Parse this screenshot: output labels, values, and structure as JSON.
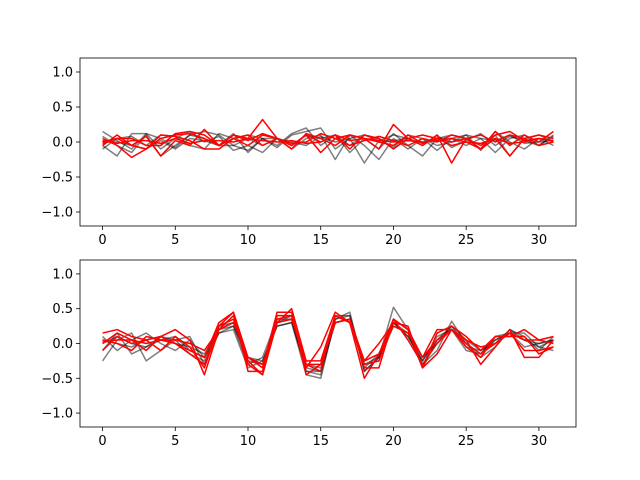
{
  "chart_data": [
    {
      "type": "line",
      "title": "",
      "xlabel": "",
      "ylabel": "",
      "xlim": [
        -1.55,
        32.55
      ],
      "ylim": [
        -1.2,
        1.2
      ],
      "xticks": [
        0,
        5,
        10,
        15,
        20,
        25,
        30
      ],
      "yticks": [
        -1.0,
        -0.5,
        0.0,
        0.5,
        1.0
      ],
      "ytick_labels": [
        "−1.0",
        "−0.5",
        "0.0",
        "0.5",
        "1.0"
      ],
      "grid": false,
      "colors": {
        "series_gray": "#000000",
        "series_red": "#ff0000",
        "gray_alpha": 0.5
      },
      "x": [
        0,
        1,
        2,
        3,
        4,
        5,
        6,
        7,
        8,
        9,
        10,
        11,
        12,
        13,
        14,
        15,
        16,
        17,
        18,
        19,
        20,
        21,
        22,
        23,
        24,
        25,
        26,
        27,
        28,
        29,
        30,
        31
      ],
      "series": [
        {
          "color": "gray",
          "values": [
            0.15,
            0.02,
            -0.1,
            0.12,
            0.05,
            -0.08,
            0.1,
            0.05,
            -0.05,
            0.12,
            -0.15,
            0.05,
            -0.08,
            0.1,
            0.15,
            0.2,
            -0.1,
            0.05,
            -0.3,
            0.02,
            0.1,
            0.05,
            -0.05,
            0.1,
            -0.08,
            0.02,
            0.12,
            -0.05,
            0.08,
            0.02,
            -0.05,
            0.1
          ]
        },
        {
          "color": "gray",
          "values": [
            -0.05,
            -0.2,
            0.12,
            0.12,
            -0.1,
            0.05,
            0.15,
            0.0,
            0.08,
            -0.12,
            -0.05,
            -0.15,
            0.05,
            -0.1,
            0.05,
            0.1,
            -0.25,
            0.1,
            -0.05,
            -0.25,
            0.05,
            -0.1,
            0.05,
            -0.12,
            0.05,
            0.1,
            -0.12,
            0.1,
            -0.2,
            0.05,
            0.1,
            0.0
          ]
        },
        {
          "color": "gray",
          "values": [
            0.08,
            -0.05,
            -0.15,
            0.1,
            -0.2,
            -0.05,
            0.1,
            0.15,
            0.1,
            -0.05,
            -0.12,
            0.05,
            0.05,
            -0.05,
            0.1,
            0.05,
            0.1,
            -0.15,
            0.05,
            -0.1,
            0.12,
            -0.05,
            -0.2,
            0.05,
            0.1,
            0.05,
            -0.1,
            0.15,
            0.0,
            -0.1,
            0.05,
            -0.05
          ]
        },
        {
          "color": "gray",
          "values": [
            -0.1,
            0.05,
            0.08,
            -0.05,
            0.1,
            0.08,
            -0.05,
            -0.1,
            0.12,
            0.05,
            0.1,
            0.05,
            -0.05,
            0.12,
            0.2,
            -0.05,
            0.1,
            -0.05,
            0.1,
            0.05,
            -0.08,
            0.1,
            0.05,
            -0.05,
            0.0,
            0.1,
            0.05,
            -0.15,
            0.05,
            0.1,
            -0.05,
            0.08
          ]
        },
        {
          "color": "gray",
          "values": [
            0.0,
            0.0,
            -0.05,
            -0.1,
            0.02,
            -0.1,
            0.05,
            0.02,
            -0.05,
            -0.05,
            0.05,
            -0.05,
            0.05,
            0.0,
            -0.05,
            0.08,
            0.0,
            0.05,
            0.1,
            0.02,
            0.02,
            0.05,
            -0.02,
            0.05,
            0.05,
            -0.05,
            0.05,
            0.02,
            0.1,
            -0.02,
            0.0,
            0.02
          ]
        },
        {
          "color": "red",
          "values": [
            -0.05,
            0.1,
            -0.05,
            -0.1,
            0.05,
            0.1,
            0.12,
            0.05,
            -0.05,
            0.1,
            0.05,
            0.32,
            0.05,
            -0.05,
            0.1,
            -0.15,
            0.05,
            0.1,
            0.05,
            -0.1,
            0.25,
            0.05,
            -0.05,
            0.1,
            -0.3,
            0.05,
            -0.1,
            0.15,
            -0.05,
            0.1,
            0.0,
            0.15
          ]
        },
        {
          "color": "red",
          "values": [
            0.05,
            -0.05,
            -0.22,
            -0.1,
            0.1,
            0.08,
            0.02,
            -0.1,
            -0.1,
            0.05,
            0.1,
            -0.05,
            0.05,
            -0.1,
            0.12,
            0.05,
            -0.05,
            0.1,
            0.05,
            0.0,
            -0.05,
            0.1,
            -0.02,
            0.05,
            -0.05,
            0.0,
            -0.1,
            0.05,
            -0.2,
            0.05,
            0.1,
            0.05
          ]
        },
        {
          "color": "red",
          "values": [
            0.0,
            0.05,
            0.05,
            -0.05,
            -0.05,
            0.12,
            0.15,
            0.1,
            -0.05,
            0.05,
            -0.05,
            0.1,
            0.05,
            -0.05,
            0.1,
            0.0,
            0.1,
            -0.1,
            0.1,
            0.05,
            -0.1,
            0.05,
            0.1,
            0.05,
            0.0,
            0.05,
            0.1,
            0.0,
            0.1,
            0.05,
            -0.05,
            0.0
          ]
        },
        {
          "color": "red",
          "values": [
            -0.02,
            0.05,
            -0.05,
            0.08,
            -0.2,
            0.02,
            -0.05,
            0.18,
            -0.05,
            0.1,
            0.02,
            0.12,
            0.05,
            -0.02,
            0.0,
            0.12,
            0.05,
            -0.05,
            0.02,
            0.08,
            0.02,
            -0.05,
            0.05,
            0.0,
            0.1,
            0.05,
            -0.05,
            0.1,
            0.15,
            0.02,
            0.05,
            0.02
          ]
        },
        {
          "color": "red",
          "values": [
            0.02,
            -0.02,
            0.02,
            0.02,
            -0.02,
            0.05,
            -0.02,
            0.02,
            0.02,
            0.0,
            0.05,
            0.02,
            0.0,
            0.02,
            -0.02,
            0.0,
            0.1,
            0.02,
            0.05,
            0.02,
            0.0,
            0.02,
            0.0,
            0.02,
            0.05,
            0.0,
            -0.02,
            0.05,
            -0.02,
            0.0,
            0.05,
            0.02
          ]
        }
      ]
    },
    {
      "type": "line",
      "title": "",
      "xlabel": "",
      "ylabel": "",
      "xlim": [
        -1.55,
        32.55
      ],
      "ylim": [
        -1.2,
        1.2
      ],
      "xticks": [
        0,
        5,
        10,
        15,
        20,
        25,
        30
      ],
      "yticks": [
        -1.0,
        -0.5,
        0.0,
        0.5,
        1.0
      ],
      "ytick_labels": [
        "−1.0",
        "−0.5",
        "0.0",
        "0.5",
        "1.0"
      ],
      "grid": false,
      "colors": {
        "series_gray": "#000000",
        "series_red": "#ff0000",
        "gray_alpha": 0.5
      },
      "x": [
        0,
        1,
        2,
        3,
        4,
        5,
        6,
        7,
        8,
        9,
        10,
        11,
        12,
        13,
        14,
        15,
        16,
        17,
        18,
        19,
        20,
        21,
        22,
        23,
        24,
        25,
        26,
        27,
        28,
        29,
        30,
        31
      ],
      "series": [
        {
          "color": "gray",
          "values": [
            -0.25,
            0.05,
            0.15,
            -0.25,
            -0.1,
            0.05,
            0.1,
            -0.3,
            0.15,
            0.2,
            -0.35,
            -0.25,
            0.25,
            0.3,
            -0.45,
            -0.5,
            0.35,
            0.45,
            -0.4,
            -0.2,
            0.52,
            0.2,
            -0.3,
            -0.1,
            0.32,
            0.0,
            -0.2,
            -0.05,
            0.2,
            0.1,
            -0.1,
            0.1
          ]
        },
        {
          "color": "gray",
          "values": [
            0.1,
            -0.1,
            0.05,
            0.15,
            0.0,
            -0.1,
            0.05,
            -0.2,
            0.25,
            0.3,
            -0.2,
            -0.3,
            0.3,
            0.4,
            -0.3,
            -0.35,
            0.3,
            0.35,
            -0.35,
            -0.15,
            0.3,
            0.1,
            -0.25,
            0.1,
            0.2,
            -0.1,
            -0.15,
            0.1,
            0.15,
            -0.05,
            0.0,
            0.05
          ]
        },
        {
          "color": "gray",
          "values": [
            -0.1,
            0.15,
            -0.15,
            -0.05,
            0.1,
            0.05,
            -0.15,
            -0.25,
            0.2,
            0.25,
            -0.3,
            -0.2,
            0.35,
            0.35,
            -0.4,
            -0.4,
            0.4,
            0.4,
            -0.3,
            -0.25,
            0.25,
            0.15,
            -0.35,
            0.05,
            0.25,
            -0.05,
            -0.1,
            0.05,
            0.15,
            0.15,
            -0.05,
            -0.1
          ]
        },
        {
          "color": "gray",
          "values": [
            0.05,
            0.0,
            -0.05,
            0.05,
            0.1,
            0.0,
            -0.05,
            -0.15,
            0.2,
            0.3,
            -0.25,
            -0.3,
            0.3,
            0.35,
            -0.4,
            -0.45,
            0.35,
            0.4,
            -0.4,
            -0.2,
            0.3,
            0.15,
            -0.2,
            0.0,
            0.25,
            0.05,
            -0.1,
            0.0,
            0.2,
            0.05,
            -0.05,
            0.05
          ]
        },
        {
          "color": "gray",
          "values": [
            0.0,
            0.1,
            0.0,
            -0.05,
            0.05,
            0.1,
            -0.1,
            -0.2,
            0.15,
            0.25,
            -0.2,
            -0.25,
            0.25,
            0.3,
            -0.35,
            -0.4,
            0.3,
            0.35,
            -0.3,
            -0.2,
            0.3,
            0.1,
            -0.25,
            0.05,
            0.2,
            0.0,
            -0.15,
            0.05,
            0.15,
            0.05,
            0.0,
            0.05
          ]
        },
        {
          "color": "red",
          "values": [
            0.15,
            0.2,
            0.1,
            0.05,
            0.1,
            0.2,
            0.05,
            -0.45,
            0.2,
            0.4,
            -0.25,
            -0.45,
            0.3,
            0.5,
            -0.25,
            -0.25,
            0.4,
            0.3,
            -0.25,
            0.0,
            0.3,
            0.25,
            -0.35,
            0.15,
            0.25,
            0.1,
            -0.1,
            0.1,
            0.1,
            0.2,
            0.05,
            0.1
          ]
        },
        {
          "color": "red",
          "values": [
            -0.1,
            0.1,
            0.0,
            0.05,
            -0.1,
            0.1,
            -0.05,
            -0.35,
            0.25,
            0.45,
            -0.4,
            -0.4,
            0.4,
            0.4,
            -0.35,
            -0.05,
            0.45,
            0.3,
            -0.5,
            -0.15,
            0.35,
            0.2,
            -0.2,
            0.2,
            0.2,
            0.05,
            -0.3,
            -0.05,
            0.2,
            -0.2,
            -0.2,
            0.05
          ]
        },
        {
          "color": "red",
          "values": [
            0.05,
            0.0,
            -0.1,
            0.1,
            0.05,
            0.0,
            -0.1,
            -0.2,
            0.3,
            0.45,
            -0.2,
            -0.35,
            0.45,
            0.45,
            -0.45,
            -0.3,
            0.3,
            0.35,
            -0.35,
            -0.35,
            0.35,
            0.05,
            -0.3,
            0.0,
            0.2,
            -0.05,
            -0.2,
            0.1,
            0.1,
            0.1,
            -0.15,
            -0.05
          ]
        },
        {
          "color": "red",
          "values": [
            0.0,
            0.15,
            0.05,
            -0.1,
            0.1,
            0.0,
            -0.15,
            -0.3,
            0.25,
            0.35,
            -0.3,
            -0.45,
            0.35,
            0.4,
            -0.3,
            -0.4,
            0.4,
            0.3,
            -0.3,
            -0.25,
            0.35,
            0.2,
            -0.35,
            -0.15,
            0.2,
            0.0,
            -0.15,
            0.0,
            0.15,
            -0.1,
            -0.1,
            -0.05
          ]
        },
        {
          "color": "red",
          "values": [
            0.02,
            0.05,
            0.05,
            0.0,
            0.05,
            0.05,
            0.0,
            -0.1,
            0.2,
            0.3,
            -0.2,
            -0.3,
            0.3,
            0.35,
            -0.3,
            -0.3,
            0.3,
            0.35,
            -0.25,
            -0.15,
            0.25,
            0.15,
            -0.2,
            0.05,
            0.2,
            0.05,
            -0.05,
            0.0,
            0.15,
            0.05,
            0.05,
            0.0
          ]
        }
      ]
    }
  ]
}
